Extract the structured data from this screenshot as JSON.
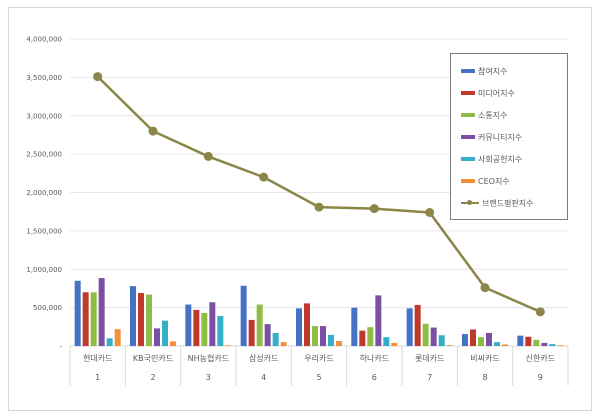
{
  "chart_data": {
    "type": "bar",
    "title": "",
    "xlabel": "",
    "ylabel": "",
    "ylim": [
      0,
      4000000
    ],
    "yticks": [
      0,
      500000,
      1000000,
      1500000,
      2000000,
      2500000,
      3000000,
      3500000,
      4000000
    ],
    "ytick_labels": [
      "-",
      "500,000",
      "1,000,000",
      "1,500,000",
      "2,000,000",
      "2,500,000",
      "3,000,000",
      "3,500,000",
      "4,000,000"
    ],
    "grid": true,
    "legend_position": "upper right",
    "categories": [
      "현대카드",
      "KB국민카드",
      "NH농협카드",
      "삼성카드",
      "우리카드",
      "하나카드",
      "롯데카드",
      "비씨카드",
      "신한카드"
    ],
    "category_ranks": [
      "1",
      "2",
      "3",
      "4",
      "5",
      "6",
      "7",
      "8",
      "9"
    ],
    "series": [
      {
        "name": "참여지수",
        "type": "bar",
        "color": "#4472c4",
        "values": [
          850000,
          780000,
          540000,
          785000,
          490000,
          500000,
          490000,
          155000,
          135000
        ]
      },
      {
        "name": "미디어지수",
        "type": "bar",
        "color": "#c0392b",
        "values": [
          700000,
          690000,
          470000,
          340000,
          555000,
          200000,
          535000,
          215000,
          120000
        ]
      },
      {
        "name": "소통지수",
        "type": "bar",
        "color": "#8fbc45",
        "values": [
          700000,
          670000,
          430000,
          540000,
          260000,
          245000,
          290000,
          115000,
          80000
        ]
      },
      {
        "name": "커뮤니티지수",
        "type": "bar",
        "color": "#7b4fa3",
        "values": [
          885000,
          230000,
          570000,
          285000,
          260000,
          660000,
          240000,
          170000,
          40000
        ]
      },
      {
        "name": "사회공헌지수",
        "type": "bar",
        "color": "#35aec8",
        "values": [
          100000,
          330000,
          390000,
          170000,
          145000,
          115000,
          140000,
          50000,
          25000
        ]
      },
      {
        "name": "CEO지수",
        "type": "bar",
        "color": "#f0913a",
        "values": [
          220000,
          60000,
          10000,
          50000,
          65000,
          40000,
          10000,
          20000,
          10000
        ]
      },
      {
        "name": "브랜드평판지수",
        "type": "line",
        "color": "#8b8647",
        "values": [
          3510000,
          2800000,
          2470000,
          2200000,
          1810000,
          1790000,
          1740000,
          760000,
          445000
        ]
      }
    ]
  },
  "legend": {
    "items": [
      {
        "label": "참여지수",
        "color": "#4472c4",
        "kind": "bar"
      },
      {
        "label": "미디어지수",
        "color": "#c0392b",
        "kind": "bar"
      },
      {
        "label": "소통지수",
        "color": "#8fbc45",
        "kind": "bar"
      },
      {
        "label": "커뮤니티지수",
        "color": "#7b4fa3",
        "kind": "bar"
      },
      {
        "label": "사회공헌지수",
        "color": "#35aec8",
        "kind": "bar"
      },
      {
        "label": "CEO지수",
        "color": "#f0913a",
        "kind": "bar"
      },
      {
        "label": "브랜드평판지수",
        "color": "#8b8647",
        "kind": "line"
      }
    ]
  }
}
